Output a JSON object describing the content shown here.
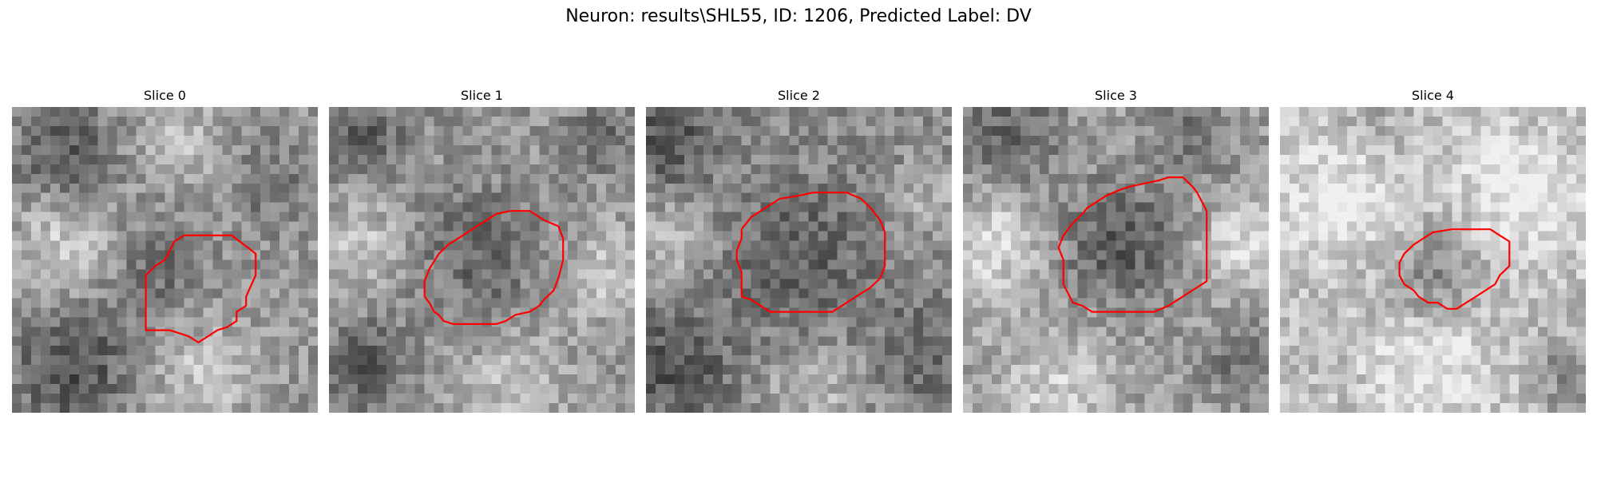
{
  "figure": {
    "title": "Neuron: results\\SHL55, ID: 1206, Predicted Label: DV"
  },
  "panels": [
    {
      "title": "Slice 0"
    },
    {
      "title": "Slice 1"
    },
    {
      "title": "Slice 2"
    },
    {
      "title": "Slice 3"
    },
    {
      "title": "Slice 4"
    }
  ],
  "colors": {
    "contour": "#ff0000",
    "background": "#ffffff"
  }
}
